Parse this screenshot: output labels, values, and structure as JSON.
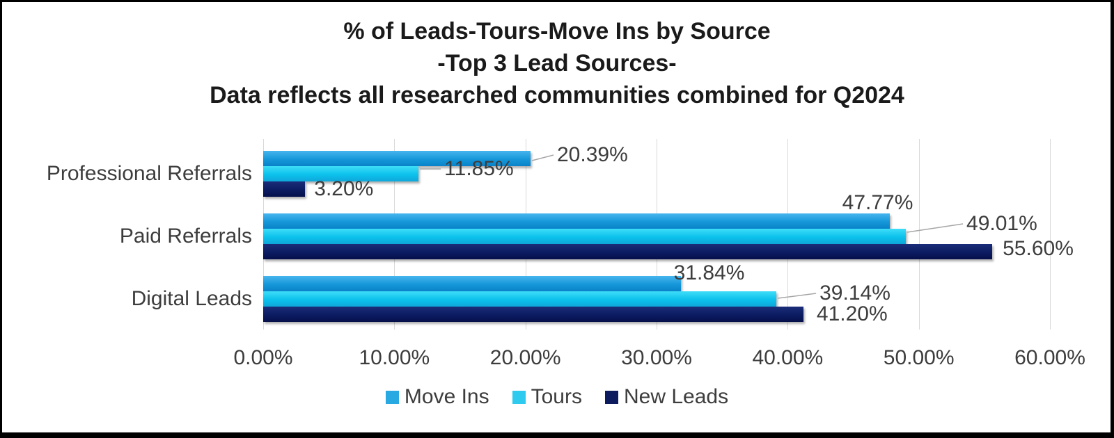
{
  "title_lines": [
    "% of Leads-Tours-Move Ins by Source",
    "-Top 3 Lead Sources-",
    "Data reflects all researched communities combined for Q2024"
  ],
  "chart_data": {
    "type": "bar",
    "orientation": "horizontal",
    "title": "% of Leads-Tours-Move Ins by Source -Top 3 Lead Sources- Data reflects all researched communities combined for Q2024",
    "categories": [
      "Professional Referrals",
      "Paid Referrals",
      "Digital Leads"
    ],
    "series": [
      {
        "name": "Move Ins",
        "values": [
          20.39,
          47.77,
          31.84
        ],
        "data_labels": [
          "20.39%",
          "47.77%",
          "31.84%"
        ],
        "color": "#29a9e1",
        "gradient": [
          "#47b5ee",
          "#1697d9",
          "#0982c9"
        ]
      },
      {
        "name": "Tours",
        "values": [
          11.85,
          49.01,
          39.14
        ],
        "data_labels": [
          "11.85%",
          "49.01%",
          "39.14%"
        ],
        "color": "#2fcbee",
        "gradient": [
          "#3fddf8",
          "#0bc1ec",
          "#0fa7da"
        ]
      },
      {
        "name": "New Leads",
        "values": [
          3.2,
          55.6,
          41.2
        ],
        "data_labels": [
          "3.20%",
          "55.60%",
          "41.20%"
        ],
        "color": "#0b1b5e",
        "gradient": [
          "#1b2d79",
          "#0c1c62",
          "#050f4a"
        ]
      }
    ],
    "x_ticks": [
      "0.00%",
      "10.00%",
      "20.00%",
      "30.00%",
      "40.00%",
      "50.00%",
      "60.00%"
    ],
    "xlim": [
      0,
      60
    ],
    "grid": true,
    "legend_position": "bottom",
    "legend": [
      "Move Ins",
      "Tours",
      "New Leads"
    ]
  },
  "colors": {
    "background": "#ffffff",
    "border": "#000000",
    "title_text": "#1a1a1a",
    "axis_text": "#3d3d3d",
    "grid": "#d9d9d9",
    "leader_line": "#a6a6a6"
  }
}
